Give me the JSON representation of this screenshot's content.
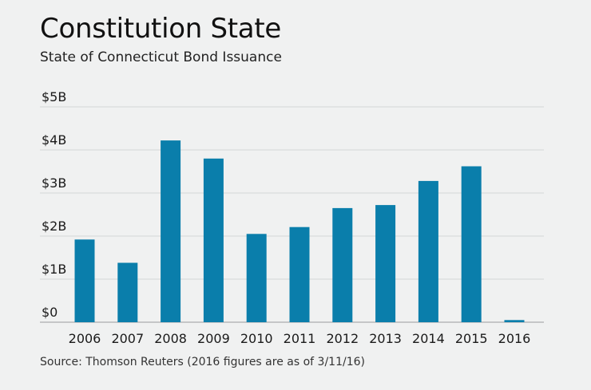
{
  "header": {
    "title": "Constitution State",
    "subtitle": "State of Connecticut Bond Issuance"
  },
  "footer": {
    "source": "Source: Thomson Reuters (2016 figures are as of 3/11/16)"
  },
  "colors": {
    "bar": "#0a7eab",
    "background": "#f0f1f1"
  },
  "chart_data": {
    "type": "bar",
    "title": "Constitution State",
    "subtitle": "State of Connecticut Bond Issuance",
    "xlabel": "",
    "ylabel": "",
    "categories": [
      "2006",
      "2007",
      "2008",
      "2009",
      "2010",
      "2011",
      "2012",
      "2013",
      "2014",
      "2015",
      "2016"
    ],
    "values": [
      1.92,
      1.38,
      4.22,
      3.8,
      2.05,
      2.21,
      2.65,
      2.72,
      3.28,
      3.62,
      0.05
    ],
    "unit": "billion USD",
    "ylim": [
      0,
      5
    ],
    "yticks": [
      0,
      1,
      2,
      3,
      4,
      5
    ],
    "ytick_labels": [
      "$0",
      "$1B",
      "$2B",
      "$3B",
      "$4B",
      "$5B"
    ],
    "grid": true,
    "legend": "none"
  }
}
